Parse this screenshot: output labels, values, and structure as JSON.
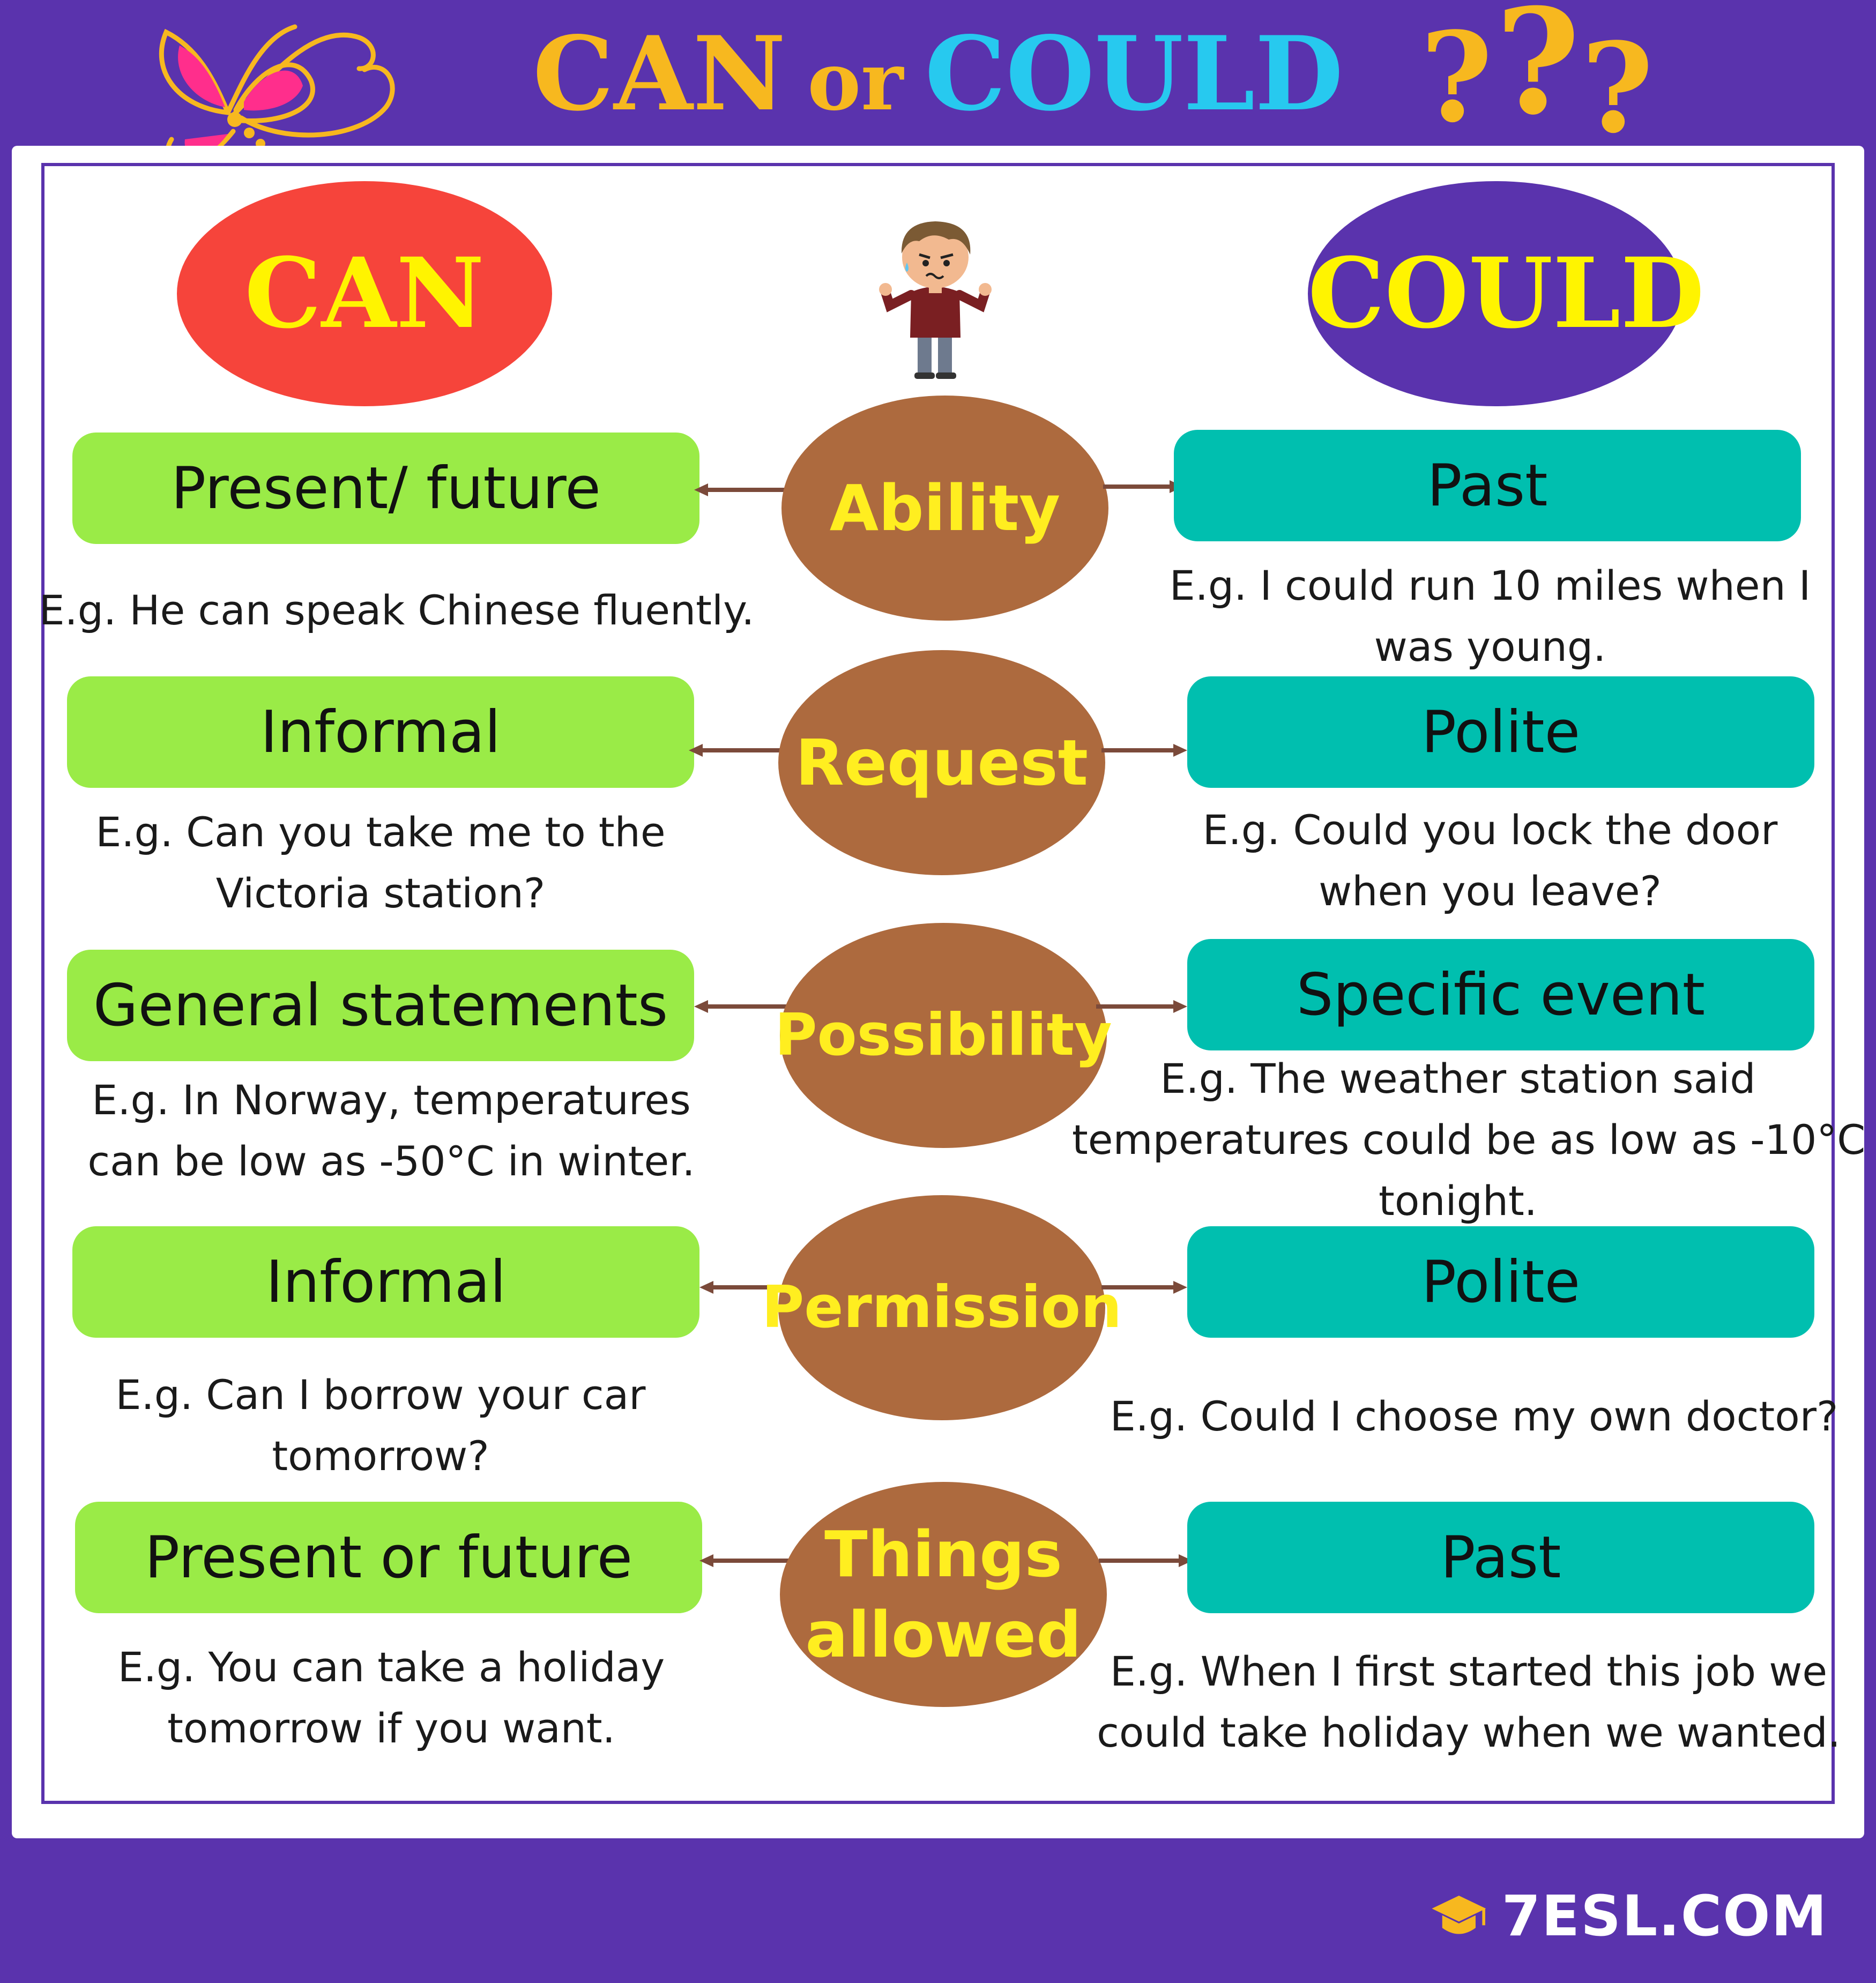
{
  "header": {
    "title_can": "CAN",
    "title_or": "or",
    "title_could": "COULD",
    "question_marks": [
      "?",
      "?",
      "?"
    ]
  },
  "columns": {
    "can_label": "CAN",
    "could_label": "COULD"
  },
  "rows": [
    {
      "hub": [
        "Ability"
      ],
      "left": "Present/ future",
      "left_example": [
        "E.g. He can speak Chinese fluently."
      ],
      "right": "Past",
      "right_example": [
        "E.g. I could run 10 miles when I",
        "was young."
      ]
    },
    {
      "hub": [
        "Request"
      ],
      "left": "Informal",
      "left_example": [
        "E.g. Can you take me to the",
        "Victoria station?"
      ],
      "right": "Polite",
      "right_example": [
        "E.g. Could you lock the door",
        "when you leave?"
      ]
    },
    {
      "hub": [
        "Possibility"
      ],
      "left": "General statements",
      "left_example": [
        "E.g. In Norway, temperatures",
        "can be low as -50°C in winter."
      ],
      "right": "Specific event",
      "right_example": [
        "E.g. The weather station said",
        "temperatures could be as low as -10°C",
        "tonight."
      ]
    },
    {
      "hub": [
        "Permission"
      ],
      "left": "Informal",
      "left_example": [
        "E.g. Can I borrow your car",
        "tomorrow?"
      ],
      "right": "Polite",
      "right_example": [
        "E.g. Could I choose my own doctor?"
      ]
    },
    {
      "hub": [
        "Things",
        "allowed"
      ],
      "left": "Present or future",
      "left_example": [
        "E.g. You can take a holiday",
        "tomorrow if you want."
      ],
      "right": "Past",
      "right_example": [
        "E.g. When I first started this job we",
        "could take holiday when we wanted."
      ]
    }
  ],
  "footer": {
    "logo_text": "7ESL.COM"
  },
  "colors": {
    "background": "#5a33ad",
    "can_oval": "#f6443b",
    "could_oval": "#5a33ad",
    "hub": "#ad6a3e",
    "hub_text": "#ffee20",
    "left_pill": "#9aeb47",
    "right_pill": "#00bfaf",
    "title_gold": "#f7b81f",
    "title_cyan": "#27c9ef"
  }
}
